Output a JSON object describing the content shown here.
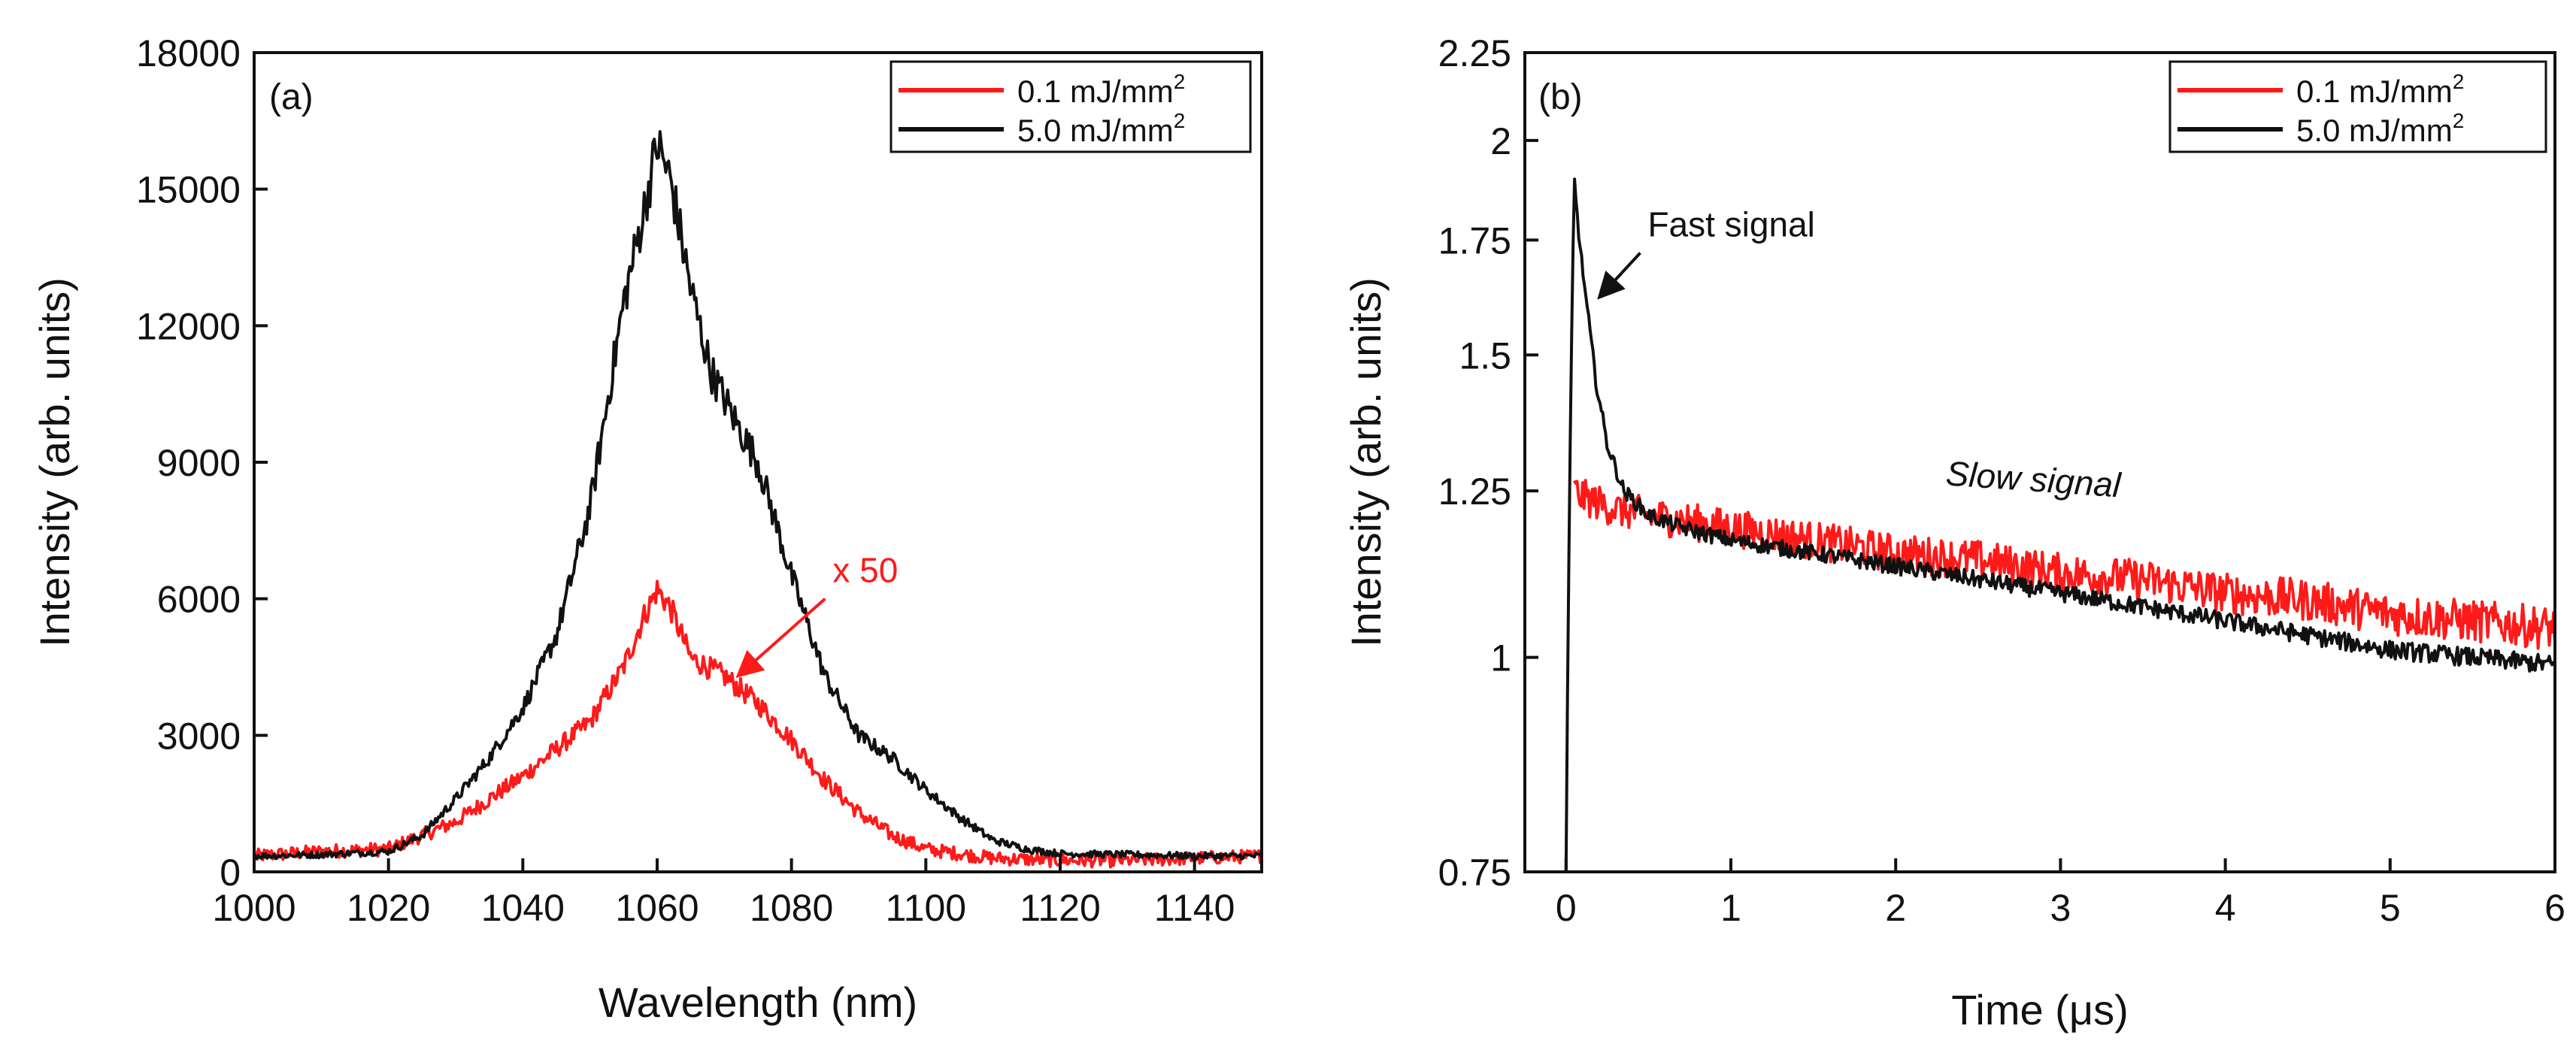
{
  "chart_data": [
    {
      "type": "line",
      "panel_label": "(a)",
      "xlabel": "Wavelength (nm)",
      "ylabel": "Intensity (arb. units)",
      "xlim": [
        1000,
        1150
      ],
      "ylim": [
        0,
        18000
      ],
      "xticks": [
        1000,
        1020,
        1040,
        1060,
        1080,
        1100,
        1120,
        1140
      ],
      "yticks": [
        0,
        3000,
        6000,
        9000,
        12000,
        15000,
        18000
      ],
      "legend": {
        "position": "top-right",
        "entries": [
          {
            "label": "0.1 mJ/mm",
            "sup": "2",
            "color": "#ff1a1a"
          },
          {
            "label": "5.0 mJ/mm",
            "sup": "2",
            "color": "#111111"
          }
        ]
      },
      "series": [
        {
          "name": "0.1 mJ/mm2",
          "color": "#ff1a1a",
          "scale_note": "x 50",
          "x": [
            1000,
            1010,
            1020,
            1030,
            1040,
            1045,
            1050,
            1055,
            1058,
            1060,
            1062,
            1065,
            1070,
            1075,
            1080,
            1085,
            1090,
            1095,
            1100,
            1110,
            1120,
            1130,
            1140,
            1150
          ],
          "values": [
            350,
            450,
            500,
            1100,
            2100,
            2700,
            3300,
            4500,
            5600,
            6200,
            5800,
            4700,
            4300,
            3700,
            2900,
            2000,
            1300,
            800,
            500,
            300,
            250,
            250,
            300,
            350
          ]
        },
        {
          "name": "5.0 mJ/mm2",
          "color": "#111111",
          "x": [
            1000,
            1010,
            1020,
            1025,
            1030,
            1035,
            1040,
            1045,
            1050,
            1055,
            1058,
            1060,
            1062,
            1065,
            1068,
            1072,
            1075,
            1080,
            1085,
            1090,
            1095,
            1100,
            1105,
            1110,
            1115,
            1120,
            1130,
            1140,
            1150
          ],
          "values": [
            350,
            380,
            450,
            800,
            1600,
            2500,
            3600,
            5200,
            8000,
            12500,
            14500,
            16000,
            15200,
            12800,
            11000,
            9800,
            9000,
            6500,
            4300,
            3000,
            2500,
            1800,
            1200,
            700,
            500,
            400,
            380,
            350,
            350
          ]
        }
      ],
      "annotations": [
        {
          "text": "x 50",
          "color": "#ff1a1a",
          "arrow_from": [
            1085,
            6000
          ],
          "arrow_to": [
            1072,
            4300
          ]
        }
      ]
    },
    {
      "type": "line",
      "panel_label": "(b)",
      "xlabel": "Time (μs)",
      "ylabel": "Intensity (arb. units)",
      "xlim": [
        -0.25,
        6
      ],
      "ylim": [
        0.75,
        2.25
      ],
      "yscale": "log",
      "xticks": [
        0,
        1,
        2,
        3,
        4,
        5,
        6
      ],
      "yticks": [
        0.75,
        1,
        1.25,
        1.5,
        1.75,
        2,
        2.25
      ],
      "ytick_labels": [
        "0.75",
        "1",
        "1.25",
        "1.5",
        "1.75",
        "2",
        "2.25"
      ],
      "legend": {
        "position": "top-right",
        "entries": [
          {
            "label": "0.1 mJ/mm",
            "sup": "2",
            "color": "#ff1a1a"
          },
          {
            "label": "5.0 mJ/mm",
            "sup": "2",
            "color": "#111111"
          }
        ]
      },
      "series": [
        {
          "name": "0.1 mJ/mm2",
          "color": "#ff1a1a",
          "x": [
            0.05,
            0.1,
            0.3,
            0.5,
            1,
            1.5,
            2,
            2.5,
            3,
            3.5,
            4,
            4.5,
            5,
            5.5,
            6
          ],
          "values": [
            1.25,
            1.24,
            1.22,
            1.21,
            1.19,
            1.17,
            1.15,
            1.14,
            1.12,
            1.11,
            1.09,
            1.08,
            1.06,
            1.05,
            1.04
          ]
        },
        {
          "name": "5.0 mJ/mm2",
          "color": "#111111",
          "x": [
            0.0,
            0.05,
            0.08,
            0.12,
            0.18,
            0.25,
            0.35,
            0.5,
            0.7,
            1,
            1.5,
            2,
            2.5,
            3,
            3.5,
            4,
            4.5,
            5,
            5.5,
            6
          ],
          "values": [
            0.75,
            1.9,
            1.75,
            1.62,
            1.45,
            1.33,
            1.25,
            1.21,
            1.19,
            1.17,
            1.15,
            1.13,
            1.11,
            1.09,
            1.07,
            1.05,
            1.03,
            1.01,
            1.0,
            0.99
          ]
        }
      ],
      "annotations": [
        {
          "text": "Fast signal",
          "color": "#111111",
          "arrow_from": [
            0.45,
            1.72
          ],
          "arrow_to": [
            0.2,
            1.62
          ]
        },
        {
          "text": "Slow signal",
          "color": "#111111",
          "italic": true,
          "at": [
            2.3,
            1.26
          ]
        }
      ]
    }
  ]
}
